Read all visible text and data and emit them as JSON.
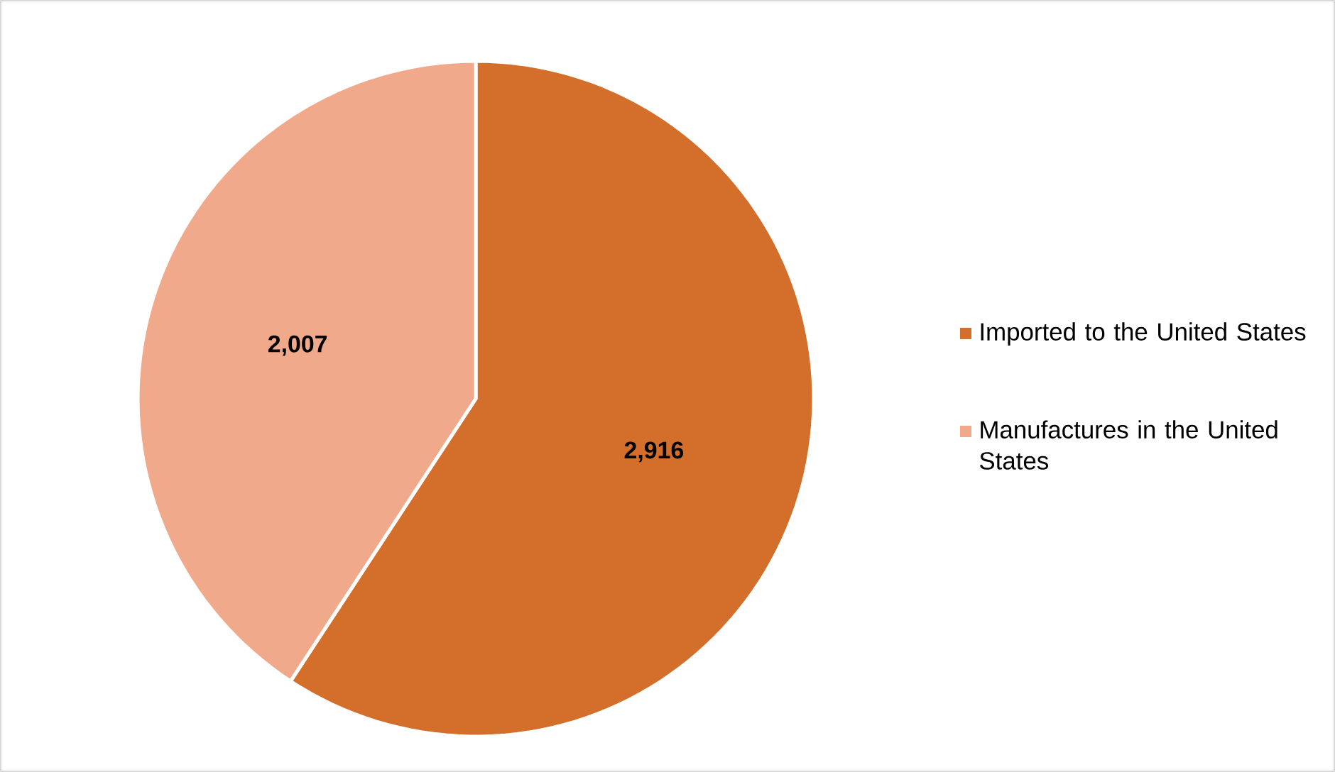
{
  "chart_data": {
    "type": "pie",
    "categories": [
      "Imported to the United States",
      "Manufactures in the United States"
    ],
    "values": [
      2916,
      2007
    ],
    "colors": [
      "#d36f2a",
      "#f0a98a"
    ],
    "value_labels": [
      "2,916",
      "2,007"
    ],
    "legend": "right"
  }
}
